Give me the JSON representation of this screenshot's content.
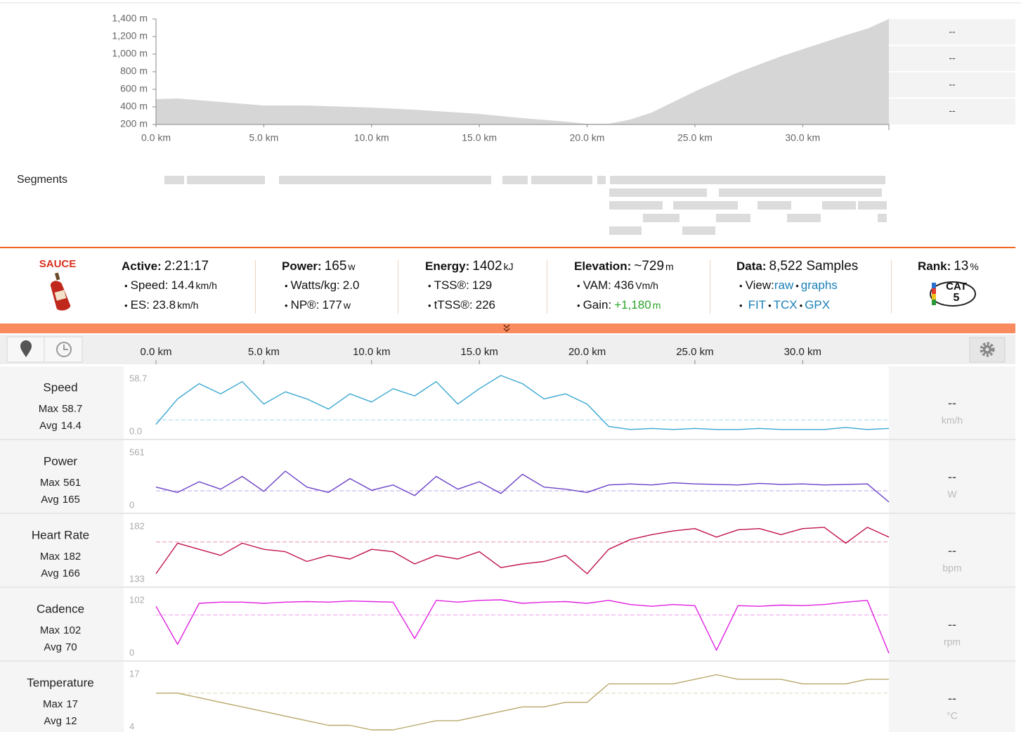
{
  "chart_data": [
    {
      "type": "area",
      "x": [
        0,
        1,
        3,
        5,
        7,
        10,
        12,
        15,
        17,
        19,
        20,
        21,
        22,
        23,
        25,
        27,
        29,
        31,
        32,
        33,
        34
      ],
      "values": [
        488,
        496,
        456,
        416,
        416,
        392,
        368,
        320,
        272,
        232,
        208,
        208,
        256,
        336,
        576,
        792,
        976,
        1136,
        1216,
        1290,
        1400
      ],
      "color": "#d6d6d6",
      "xlim": [
        0,
        34
      ],
      "ylim": [
        200,
        1400
      ],
      "yticks": [
        {
          "value": 200,
          "label": "200 m"
        },
        {
          "value": 400,
          "label": "400 m"
        },
        {
          "value": 600,
          "label": "600 m"
        },
        {
          "value": 800,
          "label": "800 m"
        },
        {
          "value": 1000,
          "label": "1,000 m"
        },
        {
          "value": 1200,
          "label": "1,200 m"
        },
        {
          "value": 1400,
          "label": "1,400 m"
        }
      ],
      "xticks": [
        {
          "value": 0,
          "label": "0.0 km"
        },
        {
          "value": 5,
          "label": "5.0 km"
        },
        {
          "value": 10,
          "label": "10.0 km"
        },
        {
          "value": 15,
          "label": "15.0 km"
        },
        {
          "value": 20,
          "label": "20.0 km"
        },
        {
          "value": 25,
          "label": "25.0 km"
        },
        {
          "value": 30,
          "label": "30.0 km"
        }
      ],
      "side": [
        "--",
        "--",
        "--",
        "--"
      ]
    },
    {
      "type": "line",
      "title": "Speed",
      "x": [
        0,
        1,
        2,
        3,
        4,
        5,
        6,
        7,
        8,
        9,
        10,
        11,
        12,
        13,
        14,
        15,
        16,
        17,
        18,
        19,
        20,
        21,
        22,
        23,
        24,
        25,
        26,
        27,
        28,
        29,
        30,
        31,
        32,
        33,
        34
      ],
      "values": [
        10,
        35,
        50,
        40,
        52,
        30,
        42,
        35,
        25,
        40,
        32,
        45,
        38,
        52,
        30,
        45,
        58,
        50,
        35,
        40,
        30,
        8,
        5,
        6,
        5,
        6,
        5,
        5,
        6,
        5,
        5,
        5,
        7,
        5,
        6
      ],
      "color": "#3aa7d1",
      "ylim": [
        0,
        58.7
      ],
      "yticks": [
        {
          "value": 0,
          "label": "0.0"
        },
        58.7
      ],
      "max_label": "Max",
      "max": 58.7,
      "avg_label": "Avg",
      "avg": 14.4,
      "side_value": "--",
      "unit": "km/h"
    },
    {
      "type": "line",
      "title": "Power",
      "x": [
        0,
        1,
        2,
        3,
        4,
        5,
        6,
        7,
        8,
        9,
        10,
        11,
        12,
        13,
        14,
        15,
        16,
        17,
        18,
        19,
        20,
        21,
        22,
        23,
        24,
        25,
        26,
        27,
        28,
        29,
        30,
        31,
        32,
        33,
        34
      ],
      "values": [
        200,
        150,
        250,
        180,
        300,
        160,
        350,
        200,
        150,
        280,
        170,
        220,
        120,
        300,
        180,
        250,
        140,
        320,
        200,
        180,
        150,
        220,
        230,
        220,
        240,
        230,
        225,
        220,
        235,
        225,
        230,
        220,
        225,
        230,
        60
      ],
      "color": "#6a3fc7",
      "ylim": [
        0,
        561
      ],
      "yticks": [
        0,
        561
      ],
      "max_label": "Max",
      "max": 561,
      "avg_label": "Avg",
      "avg": 165,
      "side_value": "--",
      "unit": "W"
    },
    {
      "type": "line",
      "title": "Heart Rate",
      "x": [
        0,
        1,
        2,
        3,
        4,
        5,
        6,
        7,
        8,
        9,
        10,
        11,
        12,
        13,
        14,
        15,
        16,
        17,
        18,
        19,
        20,
        21,
        22,
        23,
        24,
        25,
        26,
        27,
        28,
        29,
        30,
        31,
        32,
        33,
        34
      ],
      "values": [
        140,
        165,
        160,
        155,
        165,
        160,
        158,
        150,
        155,
        152,
        160,
        158,
        148,
        155,
        152,
        158,
        145,
        148,
        150,
        155,
        140,
        160,
        168,
        172,
        175,
        177,
        170,
        176,
        177,
        172,
        177,
        178,
        165,
        178,
        170
      ],
      "color": "#c0124e",
      "ylim": [
        133,
        182
      ],
      "yticks": [
        133,
        182
      ],
      "max_label": "Max",
      "max": 182,
      "avg_label": "Avg",
      "avg": 166,
      "side_value": "--",
      "unit": "bpm"
    },
    {
      "type": "line",
      "title": "Cadence",
      "x": [
        0,
        1,
        2,
        3,
        4,
        5,
        6,
        7,
        8,
        9,
        10,
        11,
        12,
        13,
        14,
        15,
        16,
        17,
        18,
        19,
        20,
        21,
        22,
        23,
        24,
        25,
        26,
        27,
        28,
        29,
        30,
        31,
        32,
        33,
        34
      ],
      "values": [
        85,
        20,
        90,
        92,
        92,
        90,
        92,
        93,
        92,
        94,
        93,
        92,
        30,
        95,
        92,
        95,
        96,
        90,
        92,
        93,
        90,
        95,
        88,
        85,
        88,
        86,
        10,
        86,
        85,
        87,
        86,
        88,
        92,
        95,
        5
      ],
      "color": "#e020e0",
      "ylim": [
        0,
        102
      ],
      "yticks": [
        0,
        102
      ],
      "max_label": "Max",
      "max": 102,
      "avg_label": "Avg",
      "avg": 70,
      "side_value": "--",
      "unit": "rpm"
    },
    {
      "type": "line",
      "title": "Temperature",
      "x": [
        0,
        1,
        2,
        3,
        4,
        5,
        6,
        7,
        8,
        9,
        10,
        11,
        12,
        13,
        14,
        15,
        16,
        17,
        18,
        19,
        20,
        21,
        22,
        23,
        24,
        25,
        26,
        27,
        28,
        29,
        30,
        31,
        32,
        33,
        34
      ],
      "values": [
        12,
        12,
        11,
        10,
        9,
        8,
        7,
        6,
        5,
        5,
        4,
        4,
        5,
        6,
        6,
        7,
        8,
        9,
        9,
        10,
        10,
        14,
        14,
        14,
        14,
        15,
        16,
        15,
        15,
        15,
        14,
        14,
        14,
        15,
        15
      ],
      "color": "#b8a86a",
      "ylim": [
        4,
        17
      ],
      "yticks": [
        4,
        17
      ],
      "max_label": "Max",
      "max": 17,
      "avg_label": "Avg",
      "avg": 12,
      "side_value": "--",
      "unit": "°C"
    }
  ],
  "segments_label": "Segments",
  "stream_axis": {
    "xlim": [
      0,
      34
    ],
    "xticks": [
      {
        "value": 0,
        "label": "0.0 km"
      },
      {
        "value": 5,
        "label": "5.0 km"
      },
      {
        "value": 10,
        "label": "10.0 km"
      },
      {
        "value": 15,
        "label": "15.0 km"
      },
      {
        "value": 20,
        "label": "20.0 km"
      },
      {
        "value": 25,
        "label": "25.0 km"
      },
      {
        "value": 30,
        "label": "30.0 km"
      }
    ]
  },
  "stats": {
    "brand": "SAUCE",
    "columns": [
      {
        "label": "Active:",
        "value": "2:21:17",
        "items": [
          {
            "label": "Speed:",
            "value": "14.4",
            "unit": "km/h"
          },
          {
            "label": "ES:",
            "value": "23.8",
            "unit": "km/h"
          }
        ]
      },
      {
        "label": "Power:",
        "value": "165",
        "unit": "w",
        "items": [
          {
            "label": "Watts/kg:",
            "value": "2.0"
          },
          {
            "label": "NP®:",
            "value": "177",
            "unit": "w"
          }
        ]
      },
      {
        "label": "Energy:",
        "value": "1402",
        "unit": "kJ",
        "items": [
          {
            "label": "TSS®:",
            "value": "129"
          },
          {
            "label": "tTSS®:",
            "value": "226"
          }
        ]
      },
      {
        "label": "Elevation:",
        "value": "~729",
        "unit": "m",
        "items": [
          {
            "label": "VAM:",
            "value": "436",
            "unit": "Vm/h"
          },
          {
            "label": "Gain:",
            "value": "+1,180",
            "unit": "m",
            "highlight": true
          }
        ]
      },
      {
        "label": "Data:",
        "value": "8,522 Samples",
        "items": [
          {
            "label": "View:",
            "links": [
              "raw",
              "graphs"
            ]
          },
          {
            "links": [
              "FIT",
              "TCX",
              "GPX"
            ]
          }
        ]
      },
      {
        "label": "Rank:",
        "value": "13",
        "unit": "%"
      }
    ],
    "badge": {
      "text": "CAT",
      "level": "5"
    }
  }
}
